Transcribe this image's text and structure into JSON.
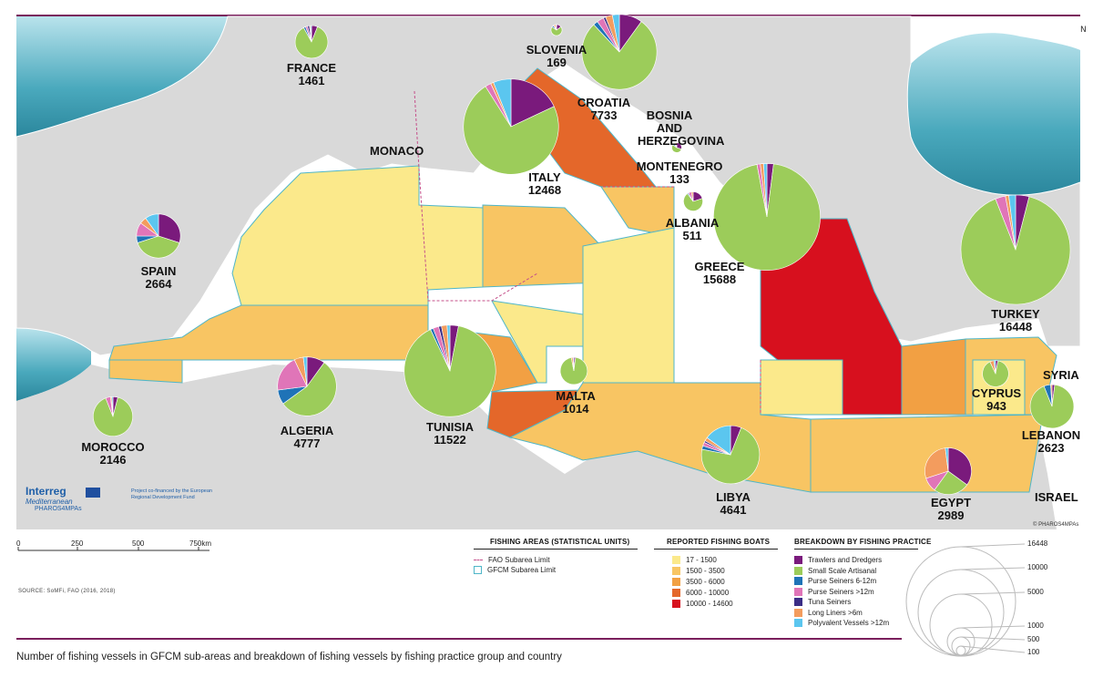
{
  "title_caption": "Number of fishing vessels in GFCM sub-areas and breakdown of fishing vessels by fishing practice group and country",
  "north": "N",
  "source": "SOURCE: SoMFi, FAO (2016, 2018)",
  "credit": "© PHAROS4MPAs",
  "logo": {
    "interreg": "Interreg",
    "mediterranean": "Mediterranean",
    "pharos": "PHAROS4MPAs",
    "funding": "Project co-financed by the European Regional Development Fund"
  },
  "colors": {
    "sea": "#ffffff",
    "land": "#d9d9d9",
    "deep_sea": "#3aa3b8",
    "accent": "#7a1f5c",
    "area_17_1500": "#fbe98b",
    "area_1500_3500": "#f8c563",
    "area_3500_6000": "#f2a043",
    "area_6000_10000": "#e4672a",
    "area_10000_14600": "#d7101e"
  },
  "scale_bar": {
    "ticks": [
      "0",
      "250",
      "500",
      "750km"
    ]
  },
  "legend": {
    "fishing_areas": {
      "title": "FISHING AREAS (STATISTICAL UNITS)",
      "items": [
        "FAO Subarea Limit",
        "GFCM Subarea Limit"
      ]
    },
    "reported_boats": {
      "title": "REPORTED FISHING BOATS",
      "items": [
        {
          "label": "17 - 1500",
          "color": "#fbe98b"
        },
        {
          "label": "1500 - 3500",
          "color": "#f8c563"
        },
        {
          "label": "3500 - 6000",
          "color": "#f2a043"
        },
        {
          "label": "6000 - 10000",
          "color": "#e4672a"
        },
        {
          "label": "10000 - 14600",
          "color": "#d7101e"
        }
      ]
    },
    "breakdown": {
      "title": "BREAKDOWN BY FISHING PRACTICE",
      "items": [
        {
          "label": "Trawlers and Dredgers",
          "color": "#7a1a7c"
        },
        {
          "label": "Small Scale Artisanal",
          "color": "#9ccc5a"
        },
        {
          "label": "Purse Seiners 6-12m",
          "color": "#1f73b7"
        },
        {
          "label": "Purse Seiners >12m",
          "color": "#e075b8"
        },
        {
          "label": "Tuna Seiners",
          "color": "#3b2d86"
        },
        {
          "label": "Long Liners >6m",
          "color": "#f39c5e"
        },
        {
          "label": "Polyvalent Vessels >12m",
          "color": "#5bc6ef"
        }
      ]
    },
    "sizes": [
      "16448",
      "10000",
      "5000",
      "1000",
      "500",
      "100"
    ]
  },
  "countries": [
    {
      "name": "FRANCE",
      "count": "1461",
      "shares": [
        0.06,
        0.86,
        0.02,
        0.02,
        0.02,
        0.01,
        0.01
      ]
    },
    {
      "name": "SLOVENIA",
      "count": "169",
      "shares": [
        0.15,
        0.7,
        0.05,
        0.03,
        0.0,
        0.05,
        0.02
      ]
    },
    {
      "name": "CROATIA",
      "count": "7733",
      "shares": [
        0.1,
        0.78,
        0.02,
        0.03,
        0.01,
        0.03,
        0.03
      ]
    },
    {
      "name": "BOSNIA AND HERZEGOVINA",
      "count": ""
    },
    {
      "name": "MONACO",
      "count": ""
    },
    {
      "name": "ITALY",
      "count": "12468",
      "shares": [
        0.18,
        0.73,
        0.0,
        0.02,
        0.0,
        0.01,
        0.06
      ]
    },
    {
      "name": "MONTENEGRO",
      "count": "133",
      "shares": [
        0.3,
        0.55,
        0.05,
        0.05,
        0.0,
        0.05,
        0.0
      ]
    },
    {
      "name": "ALBANIA",
      "count": "511",
      "shares": [
        0.2,
        0.7,
        0.02,
        0.05,
        0.0,
        0.03,
        0.0
      ]
    },
    {
      "name": "GREECE",
      "count": "15688",
      "shares": [
        0.02,
        0.95,
        0.0,
        0.01,
        0.0,
        0.01,
        0.01
      ]
    },
    {
      "name": "TURKEY",
      "count": "16448",
      "shares": [
        0.04,
        0.9,
        0.0,
        0.03,
        0.0,
        0.01,
        0.02
      ]
    },
    {
      "name": "SPAIN",
      "count": "2664",
      "shares": [
        0.3,
        0.4,
        0.05,
        0.1,
        0.0,
        0.05,
        0.1
      ]
    },
    {
      "name": "ALGERIA",
      "count": "4777",
      "shares": [
        0.1,
        0.55,
        0.08,
        0.2,
        0.0,
        0.05,
        0.02
      ]
    },
    {
      "name": "TUNISIA",
      "count": "11522",
      "shares": [
        0.03,
        0.9,
        0.01,
        0.02,
        0.01,
        0.02,
        0.01
      ]
    },
    {
      "name": "MALTA",
      "count": "1014",
      "shares": [
        0.02,
        0.95,
        0.0,
        0.0,
        0.0,
        0.02,
        0.01
      ]
    },
    {
      "name": "MOROCCO",
      "count": "2146",
      "shares": [
        0.04,
        0.9,
        0.0,
        0.04,
        0.0,
        0.01,
        0.01
      ]
    },
    {
      "name": "LIBYA",
      "count": "4641",
      "shares": [
        0.06,
        0.72,
        0.02,
        0.02,
        0.01,
        0.02,
        0.15
      ]
    },
    {
      "name": "EGYPT",
      "count": "2989",
      "shares": [
        0.35,
        0.25,
        0.0,
        0.1,
        0.0,
        0.28,
        0.02
      ]
    },
    {
      "name": "CYPRUS",
      "count": "943",
      "shares": [
        0.03,
        0.9,
        0.0,
        0.0,
        0.0,
        0.05,
        0.02
      ]
    },
    {
      "name": "SYRIA",
      "count": ""
    },
    {
      "name": "LEBANON",
      "count": "2623",
      "shares": [
        0.02,
        0.92,
        0.05,
        0.0,
        0.0,
        0.01,
        0.0
      ]
    },
    {
      "name": "ISRAEL",
      "count": ""
    }
  ]
}
